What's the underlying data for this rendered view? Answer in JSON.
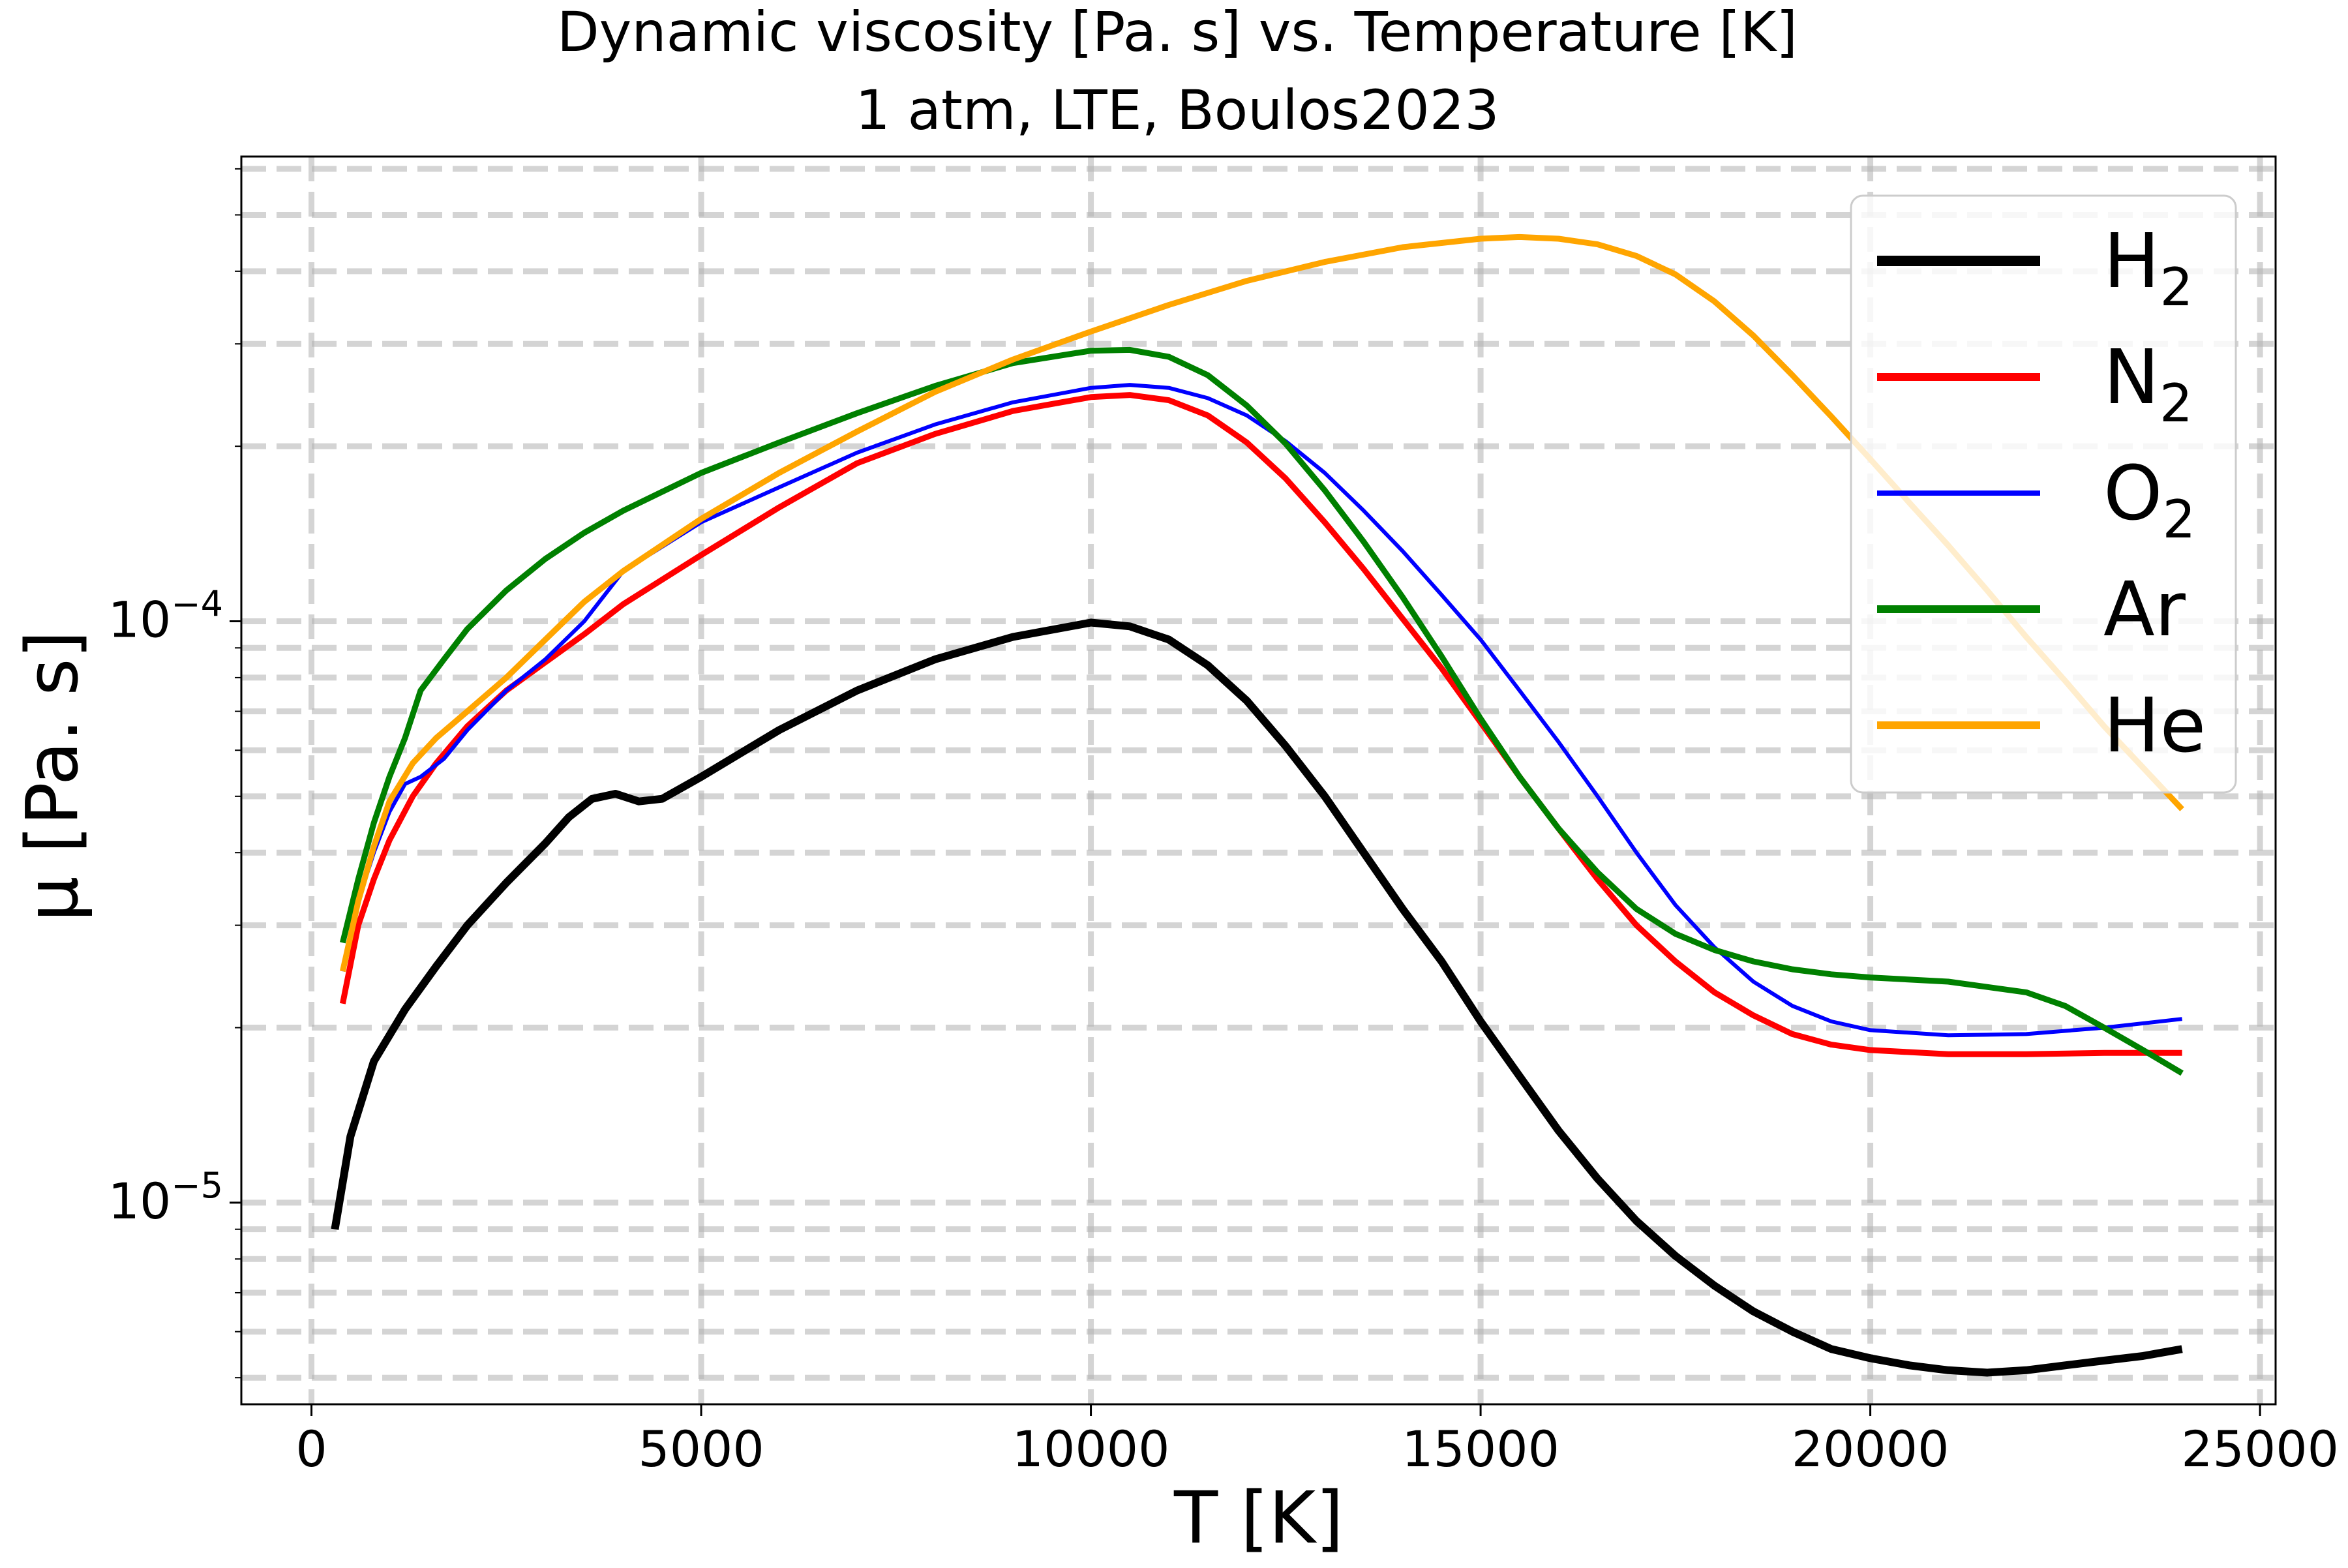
{
  "chart_data": {
    "type": "line",
    "title_line1": "Dynamic viscosity [Pa. s] vs. Temperature [K]",
    "title_line2": "1 atm, LTE, Boulos2023",
    "xlabel": "T [K]",
    "ylabel": "μ [Pa. s]",
    "xlim": [
      -900,
      25200
    ],
    "ylim": [
      4.5e-06,
      0.00063
    ],
    "yscale": "log",
    "grid": true,
    "legend_position": "top-right",
    "x_ticks": [
      {
        "value": 0,
        "label": "0"
      },
      {
        "value": 5000,
        "label": "5000"
      },
      {
        "value": 10000,
        "label": "10000"
      },
      {
        "value": 15000,
        "label": "15000"
      },
      {
        "value": 20000,
        "label": "20000"
      },
      {
        "value": 25000,
        "label": "25000"
      }
    ],
    "y_major_ticks": [
      {
        "value": 1e-05,
        "base": "10",
        "exp": "−5"
      },
      {
        "value": 0.0001,
        "base": "10",
        "exp": "−4"
      }
    ],
    "y_minor_ticks": [
      5e-06,
      6e-06,
      7e-06,
      8e-06,
      9e-06,
      2e-05,
      3e-05,
      4e-05,
      5e-05,
      6e-05,
      7e-05,
      8e-05,
      9e-05,
      0.0002,
      0.0003,
      0.0004,
      0.0005,
      0.0006
    ],
    "series": [
      {
        "name": "H",
        "sub": "2",
        "color": "#000000",
        "width": 4,
        "points": [
          [
            300,
            9e-06
          ],
          [
            500,
            1.3e-05
          ],
          [
            800,
            1.75e-05
          ],
          [
            1200,
            2.15e-05
          ],
          [
            1600,
            2.55e-05
          ],
          [
            2000,
            3e-05
          ],
          [
            2500,
            3.55e-05
          ],
          [
            3000,
            4.15e-05
          ],
          [
            3300,
            4.6e-05
          ],
          [
            3600,
            4.95e-05
          ],
          [
            3900,
            5.05e-05
          ],
          [
            4200,
            4.9e-05
          ],
          [
            4500,
            4.95e-05
          ],
          [
            5000,
            5.4e-05
          ],
          [
            6000,
            6.5e-05
          ],
          [
            7000,
            7.6e-05
          ],
          [
            8000,
            8.6e-05
          ],
          [
            9000,
            9.4e-05
          ],
          [
            10000,
            9.95e-05
          ],
          [
            10500,
            9.8e-05
          ],
          [
            11000,
            9.3e-05
          ],
          [
            11500,
            8.4e-05
          ],
          [
            12000,
            7.3e-05
          ],
          [
            12500,
            6.1e-05
          ],
          [
            13000,
            5e-05
          ],
          [
            13500,
            4e-05
          ],
          [
            14000,
            3.2e-05
          ],
          [
            14500,
            2.6e-05
          ],
          [
            15000,
            2.05e-05
          ],
          [
            15500,
            1.65e-05
          ],
          [
            16000,
            1.33e-05
          ],
          [
            16500,
            1.1e-05
          ],
          [
            17000,
            9.3e-06
          ],
          [
            17500,
            8.1e-06
          ],
          [
            18000,
            7.2e-06
          ],
          [
            18500,
            6.5e-06
          ],
          [
            19000,
            6e-06
          ],
          [
            19500,
            5.6e-06
          ],
          [
            20000,
            5.4e-06
          ],
          [
            20500,
            5.25e-06
          ],
          [
            21000,
            5.15e-06
          ],
          [
            21500,
            5.1e-06
          ],
          [
            22000,
            5.15e-06
          ],
          [
            22500,
            5.25e-06
          ],
          [
            23000,
            5.35e-06
          ],
          [
            23500,
            5.45e-06
          ],
          [
            24000,
            5.6e-06
          ]
        ]
      },
      {
        "name": "N",
        "sub": "2",
        "color": "#ff0000",
        "width": 3,
        "points": [
          [
            400,
            2.2e-05
          ],
          [
            600,
            3e-05
          ],
          [
            800,
            3.6e-05
          ],
          [
            1000,
            4.2e-05
          ],
          [
            1300,
            5e-05
          ],
          [
            1600,
            5.7e-05
          ],
          [
            2000,
            6.6e-05
          ],
          [
            2500,
            7.6e-05
          ],
          [
            3000,
            8.5e-05
          ],
          [
            3500,
            9.5e-05
          ],
          [
            4000,
            0.000107
          ],
          [
            5000,
            0.00013
          ],
          [
            6000,
            0.000157
          ],
          [
            7000,
            0.000187
          ],
          [
            8000,
            0.00021
          ],
          [
            9000,
            0.00023
          ],
          [
            10000,
            0.000243
          ],
          [
            10500,
            0.000245
          ],
          [
            11000,
            0.00024
          ],
          [
            11500,
            0.000226
          ],
          [
            12000,
            0.000203
          ],
          [
            12500,
            0.000176
          ],
          [
            13000,
            0.000148
          ],
          [
            13500,
            0.000123
          ],
          [
            14000,
            0.000101
          ],
          [
            14500,
            8.3e-05
          ],
          [
            15000,
            6.7e-05
          ],
          [
            15500,
            5.4e-05
          ],
          [
            16000,
            4.4e-05
          ],
          [
            16500,
            3.6e-05
          ],
          [
            17000,
            3e-05
          ],
          [
            17500,
            2.6e-05
          ],
          [
            18000,
            2.3e-05
          ],
          [
            18500,
            2.1e-05
          ],
          [
            19000,
            1.95e-05
          ],
          [
            19500,
            1.87e-05
          ],
          [
            20000,
            1.83e-05
          ],
          [
            21000,
            1.8e-05
          ],
          [
            22000,
            1.8e-05
          ],
          [
            23000,
            1.81e-05
          ],
          [
            24000,
            1.81e-05
          ]
        ]
      },
      {
        "name": "O",
        "sub": "2",
        "color": "#0000ff",
        "width": 2,
        "points": [
          [
            400,
            2.5e-05
          ],
          [
            600,
            3.3e-05
          ],
          [
            800,
            4e-05
          ],
          [
            1000,
            4.7e-05
          ],
          [
            1200,
            5.25e-05
          ],
          [
            1400,
            5.4e-05
          ],
          [
            1700,
            5.8e-05
          ],
          [
            2000,
            6.5e-05
          ],
          [
            2500,
            7.6e-05
          ],
          [
            3000,
            8.6e-05
          ],
          [
            3500,
            0.0001
          ],
          [
            4000,
            0.000122
          ],
          [
            5000,
            0.000148
          ],
          [
            6000,
            0.00017
          ],
          [
            7000,
            0.000195
          ],
          [
            8000,
            0.000218
          ],
          [
            9000,
            0.000238
          ],
          [
            10000,
            0.000252
          ],
          [
            10500,
            0.000255
          ],
          [
            11000,
            0.000252
          ],
          [
            11500,
            0.000242
          ],
          [
            12000,
            0.000226
          ],
          [
            12500,
            0.000204
          ],
          [
            13000,
            0.00018
          ],
          [
            13500,
            0.000155
          ],
          [
            14000,
            0.000132
          ],
          [
            14500,
            0.000111
          ],
          [
            15000,
            9.3e-05
          ],
          [
            15500,
            7.6e-05
          ],
          [
            16000,
            6.2e-05
          ],
          [
            16500,
            5e-05
          ],
          [
            17000,
            4e-05
          ],
          [
            17500,
            3.25e-05
          ],
          [
            18000,
            2.75e-05
          ],
          [
            18500,
            2.4e-05
          ],
          [
            19000,
            2.18e-05
          ],
          [
            19500,
            2.05e-05
          ],
          [
            20000,
            1.98e-05
          ],
          [
            21000,
            1.94e-05
          ],
          [
            22000,
            1.95e-05
          ],
          [
            23000,
            2e-05
          ],
          [
            24000,
            2.07e-05
          ]
        ]
      },
      {
        "name": "Ar",
        "sub": "",
        "color": "#008000",
        "width": 3,
        "points": [
          [
            400,
            2.8e-05
          ],
          [
            600,
            3.6e-05
          ],
          [
            800,
            4.5e-05
          ],
          [
            1000,
            5.4e-05
          ],
          [
            1200,
            6.3e-05
          ],
          [
            1400,
            7.6e-05
          ],
          [
            1700,
            8.6e-05
          ],
          [
            2000,
            9.7e-05
          ],
          [
            2500,
            0.000113
          ],
          [
            3000,
            0.000128
          ],
          [
            3500,
            0.000142
          ],
          [
            4000,
            0.000155
          ],
          [
            5000,
            0.00018
          ],
          [
            6000,
            0.000203
          ],
          [
            7000,
            0.000228
          ],
          [
            8000,
            0.000254
          ],
          [
            9000,
            0.000278
          ],
          [
            10000,
            0.000292
          ],
          [
            10500,
            0.000293
          ],
          [
            11000,
            0.000285
          ],
          [
            11500,
            0.000265
          ],
          [
            12000,
            0.000235
          ],
          [
            12500,
            0.000202
          ],
          [
            13000,
            0.000168
          ],
          [
            13500,
            0.000137
          ],
          [
            14000,
            0.00011
          ],
          [
            14500,
            8.7e-05
          ],
          [
            15000,
            6.8e-05
          ],
          [
            15500,
            5.4e-05
          ],
          [
            16000,
            4.4e-05
          ],
          [
            16500,
            3.7e-05
          ],
          [
            17000,
            3.2e-05
          ],
          [
            17500,
            2.9e-05
          ],
          [
            18000,
            2.72e-05
          ],
          [
            18500,
            2.6e-05
          ],
          [
            19000,
            2.52e-05
          ],
          [
            19500,
            2.47e-05
          ],
          [
            20000,
            2.44e-05
          ],
          [
            21000,
            2.4e-05
          ],
          [
            22000,
            2.3e-05
          ],
          [
            22500,
            2.18e-05
          ],
          [
            23000,
            2e-05
          ],
          [
            23500,
            1.83e-05
          ],
          [
            24000,
            1.67e-05
          ]
        ]
      },
      {
        "name": "He",
        "sub": "",
        "color": "#ffa500",
        "width": 3,
        "points": [
          [
            400,
            2.5e-05
          ],
          [
            600,
            3.3e-05
          ],
          [
            800,
            4.1e-05
          ],
          [
            1000,
            4.9e-05
          ],
          [
            1300,
            5.7e-05
          ],
          [
            1600,
            6.3e-05
          ],
          [
            2000,
            7e-05
          ],
          [
            2500,
            8e-05
          ],
          [
            3000,
            9.3e-05
          ],
          [
            3500,
            0.000108
          ],
          [
            4000,
            0.000122
          ],
          [
            5000,
            0.00015
          ],
          [
            6000,
            0.00018
          ],
          [
            7000,
            0.000212
          ],
          [
            8000,
            0.000248
          ],
          [
            9000,
            0.000282
          ],
          [
            10000,
            0.000315
          ],
          [
            11000,
            0.00035
          ],
          [
            12000,
            0.000385
          ],
          [
            13000,
            0.000415
          ],
          [
            14000,
            0.00044
          ],
          [
            15000,
            0.000455
          ],
          [
            15500,
            0.000458
          ],
          [
            16000,
            0.000455
          ],
          [
            16500,
            0.000445
          ],
          [
            17000,
            0.000425
          ],
          [
            17500,
            0.000395
          ],
          [
            18000,
            0.000355
          ],
          [
            18500,
            0.00031
          ],
          [
            19000,
            0.000265
          ],
          [
            19500,
            0.000225
          ],
          [
            20000,
            0.00019
          ],
          [
            20500,
            0.00016
          ],
          [
            21000,
            0.000135
          ],
          [
            21500,
            0.000113
          ],
          [
            22000,
            9.4e-05
          ],
          [
            22500,
            7.9e-05
          ],
          [
            23000,
            6.6e-05
          ],
          [
            23500,
            5.6e-05
          ],
          [
            24000,
            4.75e-05
          ]
        ]
      }
    ]
  }
}
